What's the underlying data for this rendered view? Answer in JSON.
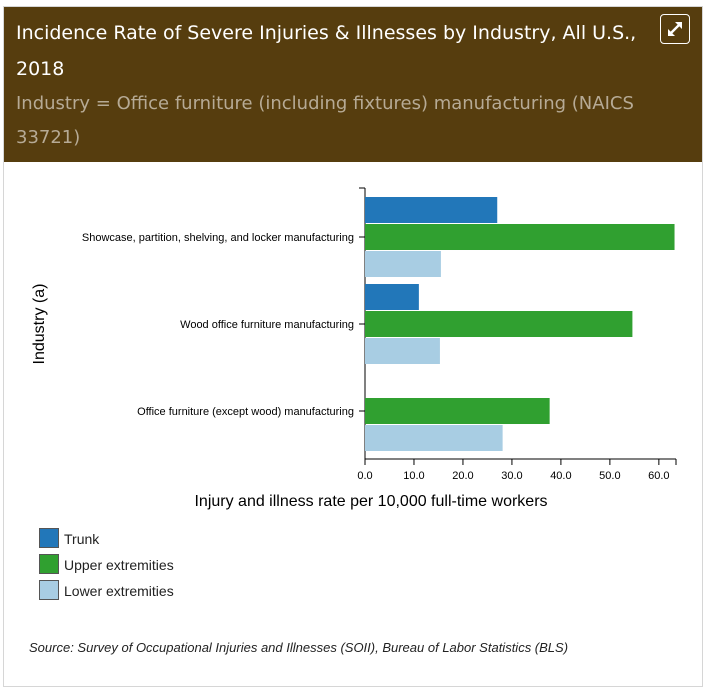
{
  "header": {
    "title": "Incidence Rate of Severe Injuries & Illnesses by Industry, All U.S., 2018",
    "subtitle": "Industry = Office furniture (including fixtures) manufacturing (NAICS 33721)",
    "expand_icon": "expand-icon"
  },
  "colors": {
    "header_bg": "#563d0e",
    "title": "#ffffff",
    "subtitle": "#b6aa95",
    "trunk": "#2277b9",
    "upper": "#30a030",
    "lower": "#a8cde3"
  },
  "chart_data": {
    "type": "bar",
    "orientation": "horizontal",
    "categories": [
      "Showcase, partition, shelving, and locker manufacturing",
      "Wood office furniture manufacturing",
      "Office furniture (except wood) manufacturing"
    ],
    "series": [
      {
        "name": "Trunk",
        "values": [
          27.0,
          11.0,
          null
        ],
        "color": "#2277b9"
      },
      {
        "name": "Upper extremities",
        "values": [
          63.2,
          54.6,
          37.7
        ],
        "color": "#30a030"
      },
      {
        "name": "Lower extremities",
        "values": [
          15.5,
          15.3,
          28.1
        ],
        "color": "#a8cde3"
      }
    ],
    "xlabel": "Injury and illness rate per 10,000 full-time workers",
    "ylabel": "Industry (a)",
    "xlim": [
      0,
      63.5
    ],
    "xticks": [
      "0.0",
      "10.0",
      "20.0",
      "30.0",
      "40.0",
      "50.0",
      "60.0"
    ],
    "legend_position": "bottom-left",
    "grid": false
  },
  "source": "Source: Survey of Occupational Injuries and Illnesses (SOII), Bureau of Labor Statistics (BLS)"
}
